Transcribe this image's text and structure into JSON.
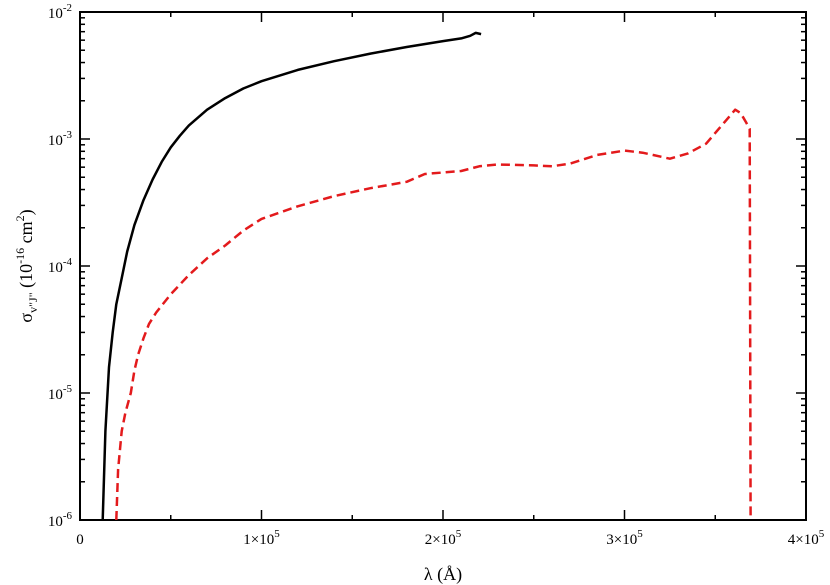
{
  "chart_data": {
    "type": "line",
    "xlabel": "λ (Å)",
    "ylabel": "σv\"J\" (10-16 cm2)",
    "xlim": [
      0,
      400000
    ],
    "ylim": [
      1e-06,
      0.01
    ],
    "yscale": "log",
    "grid": false,
    "legend": "none",
    "x_ticks": [
      {
        "value": 0,
        "base": "0",
        "exp": ""
      },
      {
        "value": 100000,
        "base": "1×10",
        "exp": "5"
      },
      {
        "value": 200000,
        "base": "2×10",
        "exp": "5"
      },
      {
        "value": 300000,
        "base": "3×10",
        "exp": "5"
      },
      {
        "value": 400000,
        "base": "4×10",
        "exp": "5"
      }
    ],
    "y_ticks": [
      {
        "value": 1e-06,
        "base": "10",
        "exp": "-6"
      },
      {
        "value": 1e-05,
        "base": "10",
        "exp": "-5"
      },
      {
        "value": 0.0001,
        "base": "10",
        "exp": "-4"
      },
      {
        "value": 0.001,
        "base": "10",
        "exp": "-3"
      },
      {
        "value": 0.01,
        "base": "10",
        "exp": "-2"
      }
    ],
    "series": [
      {
        "color": "#000000",
        "dash": "solid",
        "points": [
          [
            12500,
            1e-06
          ],
          [
            14000,
            5e-06
          ],
          [
            16000,
            1.6e-05
          ],
          [
            18000,
            3e-05
          ],
          [
            20000,
            5e-05
          ],
          [
            23000,
            8e-05
          ],
          [
            26000,
            0.00013
          ],
          [
            30000,
            0.00021
          ],
          [
            35000,
            0.00033
          ],
          [
            40000,
            0.00048
          ],
          [
            45000,
            0.00066
          ],
          [
            50000,
            0.00086
          ],
          [
            55000,
            0.00106
          ],
          [
            60000,
            0.00128
          ],
          [
            70000,
            0.0017
          ],
          [
            80000,
            0.0021
          ],
          [
            90000,
            0.0025
          ],
          [
            100000,
            0.00285
          ],
          [
            120000,
            0.0035
          ],
          [
            140000,
            0.0041
          ],
          [
            160000,
            0.0047
          ],
          [
            180000,
            0.0053
          ],
          [
            200000,
            0.0059
          ],
          [
            210000,
            0.0062
          ],
          [
            215000,
            0.0065
          ],
          [
            218000,
            0.00685
          ],
          [
            221000,
            0.0067
          ]
        ]
      },
      {
        "color": "#e31a1c",
        "dash": "dashed",
        "points": [
          [
            20000,
            1e-06
          ],
          [
            21000,
            2.5e-06
          ],
          [
            23000,
            5e-06
          ],
          [
            25000,
            7e-06
          ],
          [
            28000,
            1e-05
          ],
          [
            30000,
            1.5e-05
          ],
          [
            32000,
            2e-05
          ],
          [
            35000,
            2.7e-05
          ],
          [
            38000,
            3.5e-05
          ],
          [
            42000,
            4.3e-05
          ],
          [
            50000,
            6e-05
          ],
          [
            60000,
            8.5e-05
          ],
          [
            70000,
            0.000115
          ],
          [
            80000,
            0.000145
          ],
          [
            90000,
            0.00019
          ],
          [
            100000,
            0.000235
          ],
          [
            120000,
            0.000295
          ],
          [
            140000,
            0.000355
          ],
          [
            160000,
            0.00041
          ],
          [
            180000,
            0.00046
          ],
          [
            190000,
            0.00053
          ],
          [
            210000,
            0.00056
          ],
          [
            220000,
            0.00061
          ],
          [
            230000,
            0.00063
          ],
          [
            250000,
            0.00062
          ],
          [
            260000,
            0.00061
          ],
          [
            270000,
            0.00064
          ],
          [
            285000,
            0.00075
          ],
          [
            300000,
            0.00081
          ],
          [
            310000,
            0.00078
          ],
          [
            325000,
            0.0007
          ],
          [
            335000,
            0.00077
          ],
          [
            345000,
            0.00092
          ],
          [
            355000,
            0.00135
          ],
          [
            361000,
            0.0017
          ],
          [
            364000,
            0.0016
          ],
          [
            367000,
            0.00135
          ],
          [
            369000,
            0.0012
          ],
          [
            369500,
            1e-06
          ]
        ]
      }
    ]
  }
}
